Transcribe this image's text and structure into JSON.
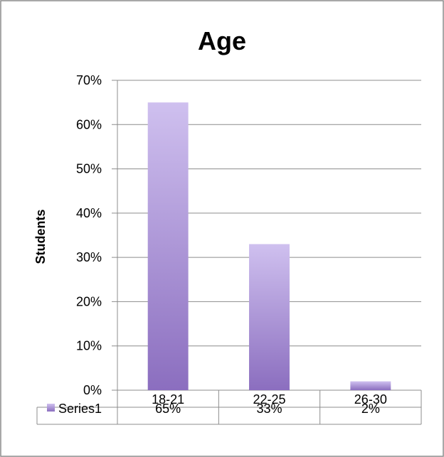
{
  "chart_data": {
    "type": "bar",
    "title": "Age",
    "xlabel": "",
    "ylabel": "Students",
    "categories": [
      "18-21",
      "22-25",
      "26-30"
    ],
    "series": [
      {
        "name": "Series1",
        "values": [
          65,
          33,
          2
        ],
        "color": "#a58fcf",
        "data_labels": [
          "65%",
          "33%",
          "2%"
        ]
      }
    ],
    "ylim": [
      0,
      70
    ],
    "y_ticks": [
      0,
      10,
      20,
      30,
      40,
      50,
      60,
      70
    ],
    "y_tick_labels": [
      "0%",
      "10%",
      "20%",
      "30%",
      "40%",
      "50%",
      "60%",
      "70%"
    ],
    "grid": true,
    "data_table": true,
    "legend": "data-table"
  }
}
